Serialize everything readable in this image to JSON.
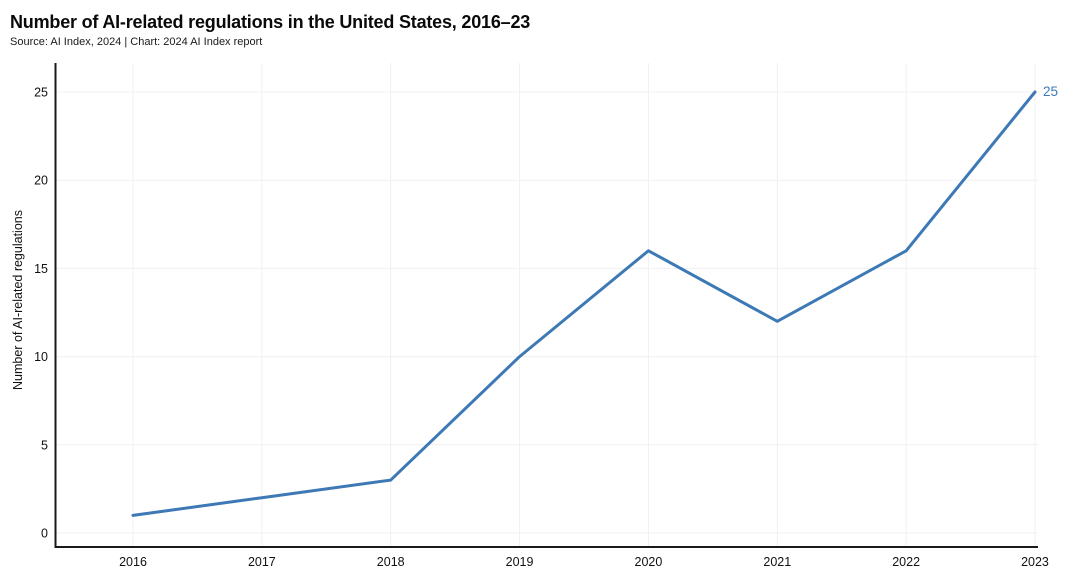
{
  "page": {
    "title": "Number of AI-related regulations in the United States, 2016–23",
    "source": "Source: AI Index, 2024 | Chart: 2024 AI Index report"
  },
  "chart_data": {
    "type": "line",
    "title": "Number of AI-related regulations in the United States, 2016–23",
    "x": [
      "2016",
      "2017",
      "2018",
      "2019",
      "2020",
      "2021",
      "2022",
      "2023"
    ],
    "values": [
      1,
      2,
      3,
      10,
      16,
      12,
      16,
      25
    ],
    "series_name": "Number of AI-related regulations",
    "xlabel": "",
    "ylabel": "Number of AI-related regulations",
    "yticks": [
      0,
      5,
      10,
      15,
      20,
      25
    ],
    "ylim": [
      0,
      25
    ],
    "end_label": "25",
    "grid": "both",
    "legend": "none",
    "line_color": "#3d79b5",
    "end_label_color": "#3d79b5",
    "gridline_color": "#f0f0f0",
    "axis_color": "#1a1a1a",
    "tick_color": "#111111"
  }
}
